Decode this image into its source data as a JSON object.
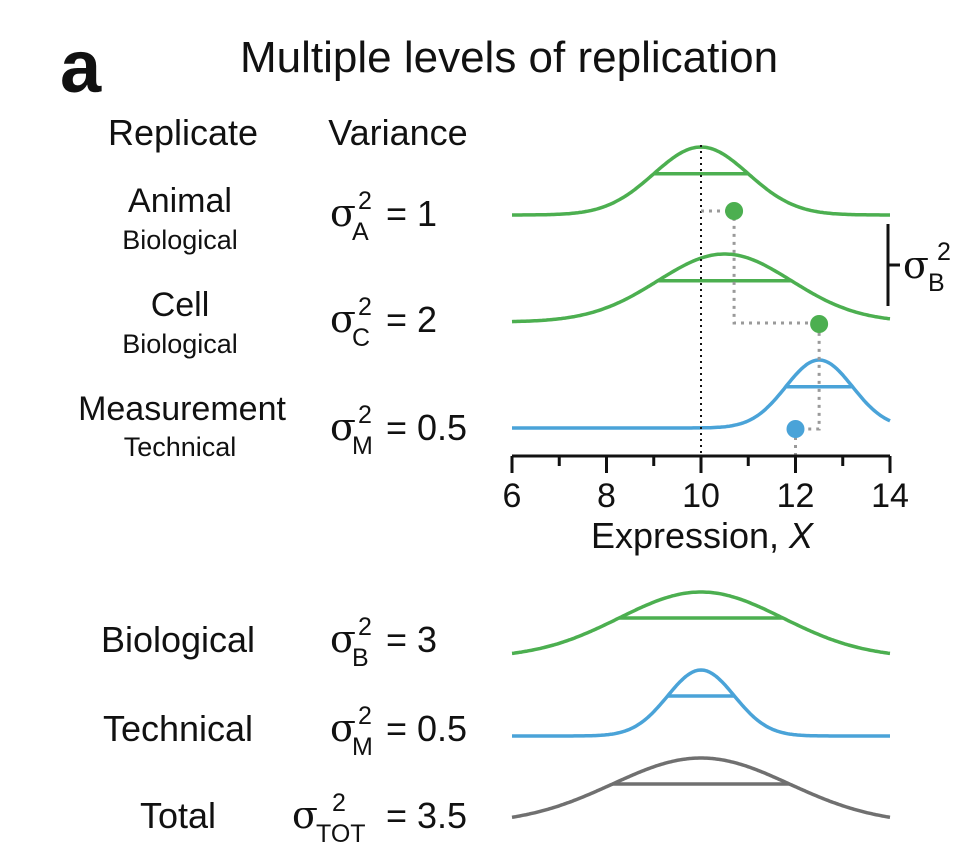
{
  "panel_label": "a",
  "title": "Multiple levels of replication",
  "headers": {
    "replicate": "Replicate",
    "variance": "Variance"
  },
  "sigma_symbol": "σ",
  "rows": [
    {
      "name": "Animal",
      "type": "Biological",
      "sub": "A",
      "sup": "2",
      "value": "= 1",
      "mean": 10,
      "sd": 1,
      "color": "#4caf50"
    },
    {
      "name": "Cell",
      "type": "Biological",
      "sub": "C",
      "sup": "2",
      "value": "= 2",
      "mean": 10.5,
      "sd": 1.4142,
      "color": "#4caf50"
    },
    {
      "name": "Measurement",
      "type": "Technical",
      "sub": "M",
      "sup": "2",
      "value": "= 0.5",
      "mean": 12.5,
      "sd": 0.7071,
      "color": "#4aa3d8"
    }
  ],
  "samples": {
    "animal_x": 10.7,
    "cell_x": 12.5,
    "measurement_x": 12,
    "dot_color_green": "#4caf50",
    "dot_color_blue": "#4aa3d8",
    "reference_x": 10
  },
  "bracket": {
    "sub": "B",
    "sup": "2"
  },
  "axis": {
    "label": "Expression, ",
    "label_var": "X",
    "xlim": [
      6,
      14
    ],
    "ticks": [
      "6",
      "8",
      "10",
      "12",
      "14"
    ]
  },
  "summary_rows": [
    {
      "name": "Biological",
      "sub": "B",
      "sup": "2",
      "value": "= 3",
      "mean": 10,
      "sd": 1.7321,
      "color": "#4caf50"
    },
    {
      "name": "Technical",
      "sub": "M",
      "sup": "2",
      "value": "= 0.5",
      "mean": 10,
      "sd": 0.7071,
      "color": "#4aa3d8"
    },
    {
      "name": "Total",
      "sub": "TOT",
      "sup": "2",
      "value": "= 3.5",
      "mean": 10,
      "sd": 1.8708,
      "color": "#707070"
    }
  ]
}
